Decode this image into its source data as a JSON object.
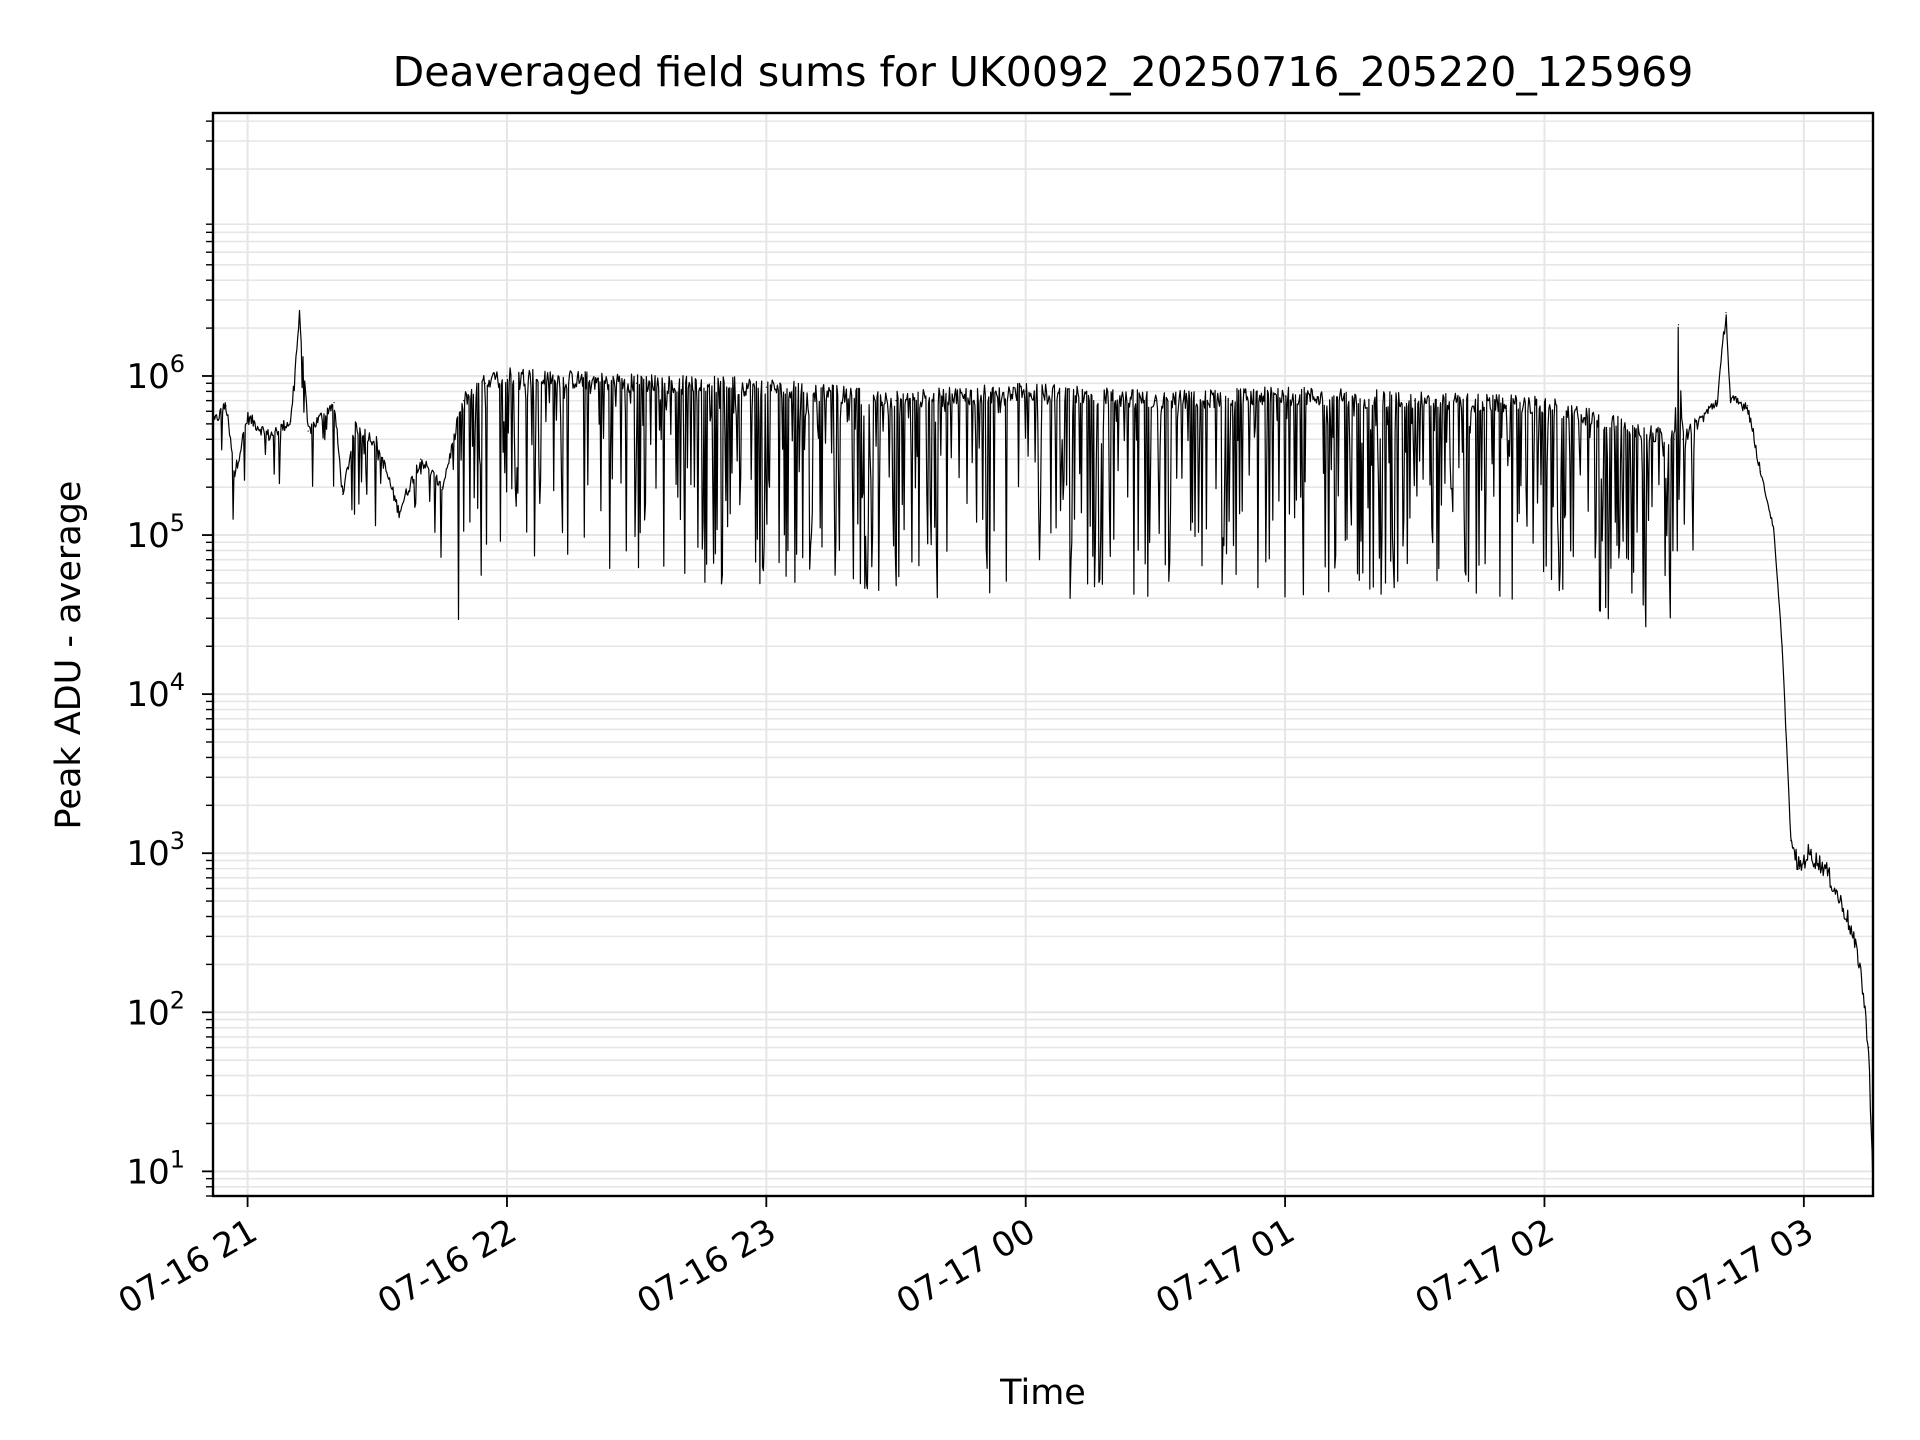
{
  "chart_data": {
    "type": "line",
    "title": "Deaveraged field sums for UK0092_20250716_205220_125969",
    "xlabel": "Time",
    "ylabel": "Peak ADU - average",
    "yscale": "log",
    "ylim": [
      7,
      45000000
    ],
    "xlim": [
      "2025-07-16 20:52:20",
      "2025-07-17 03:16:30"
    ],
    "grid": true,
    "legend": "none",
    "line_color": "#000000",
    "grid_color": "#e6e6e6",
    "x_ticks": [
      {
        "label": "07-16 21",
        "value": "2025-07-16 21:00"
      },
      {
        "label": "07-16 22",
        "value": "2025-07-16 22:00"
      },
      {
        "label": "07-16 23",
        "value": "2025-07-16 23:00"
      },
      {
        "label": "07-17 00",
        "value": "2025-07-17 00:00"
      },
      {
        "label": "07-17 01",
        "value": "2025-07-17 01:00"
      },
      {
        "label": "07-17 02",
        "value": "2025-07-17 02:00"
      },
      {
        "label": "07-17 03",
        "value": "2025-07-17 03:00"
      }
    ],
    "y_ticks": [
      {
        "base": "10",
        "exp": "1",
        "value": 10
      },
      {
        "base": "10",
        "exp": "2",
        "value": 100
      },
      {
        "base": "10",
        "exp": "3",
        "value": 1000
      },
      {
        "base": "10",
        "exp": "4",
        "value": 10000
      },
      {
        "base": "10",
        "exp": "5",
        "value": 100000
      },
      {
        "base": "10",
        "exp": "6",
        "value": 1000000
      }
    ],
    "series": [
      {
        "points": [
          [
            "2025-07-16 20:52",
            500000
          ],
          [
            "2025-07-16 20:55",
            650000
          ],
          [
            "2025-07-16 20:57",
            240000
          ],
          [
            "2025-07-16 21:00",
            550000
          ],
          [
            "2025-07-16 21:05",
            420000
          ],
          [
            "2025-07-16 21:10",
            520000
          ],
          [
            "2025-07-16 21:12",
            2400000
          ],
          [
            "2025-07-16 21:14",
            450000
          ],
          [
            "2025-07-16 21:20",
            680000
          ],
          [
            "2025-07-16 21:22",
            180000
          ],
          [
            "2025-07-16 21:25",
            480000
          ],
          [
            "2025-07-16 21:30",
            380000
          ],
          [
            "2025-07-16 21:35",
            140000
          ],
          [
            "2025-07-16 21:40",
            300000
          ],
          [
            "2025-07-16 21:45",
            200000
          ],
          [
            "2025-07-16 21:50",
            700000
          ],
          [
            "2025-07-16 21:55",
            900000
          ],
          [
            "2025-07-16 22:00",
            1000000
          ],
          [
            "2025-07-16 22:30",
            900000
          ],
          [
            "2025-07-16 23:00",
            850000
          ],
          [
            "2025-07-16 23:30",
            700000
          ],
          [
            "2025-07-17 00:00",
            800000
          ],
          [
            "2025-07-17 00:30",
            700000
          ],
          [
            "2025-07-17 01:00",
            750000
          ],
          [
            "2025-07-17 01:30",
            700000
          ],
          [
            "2025-07-17 02:00",
            650000
          ],
          [
            "2025-07-17 02:30",
            400000
          ],
          [
            "2025-07-17 02:31",
            2100000
          ],
          [
            "2025-07-17 02:32",
            400000
          ],
          [
            "2025-07-17 02:40",
            700000
          ],
          [
            "2025-07-17 02:42",
            2500000
          ],
          [
            "2025-07-17 02:43",
            700000
          ],
          [
            "2025-07-17 02:47",
            650000
          ],
          [
            "2025-07-17 02:50",
            250000
          ],
          [
            "2025-07-17 02:53",
            110000
          ],
          [
            "2025-07-17 02:55",
            20000
          ],
          [
            "2025-07-17 02:57",
            1200
          ],
          [
            "2025-07-17 02:59",
            800
          ],
          [
            "2025-07-17 03:01",
            1000
          ],
          [
            "2025-07-17 03:05",
            800
          ],
          [
            "2025-07-17 03:10",
            400
          ],
          [
            "2025-07-17 03:13",
            200
          ],
          [
            "2025-07-17 03:15",
            60
          ],
          [
            "2025-07-17 03:16",
            8
          ]
        ]
      }
    ]
  }
}
